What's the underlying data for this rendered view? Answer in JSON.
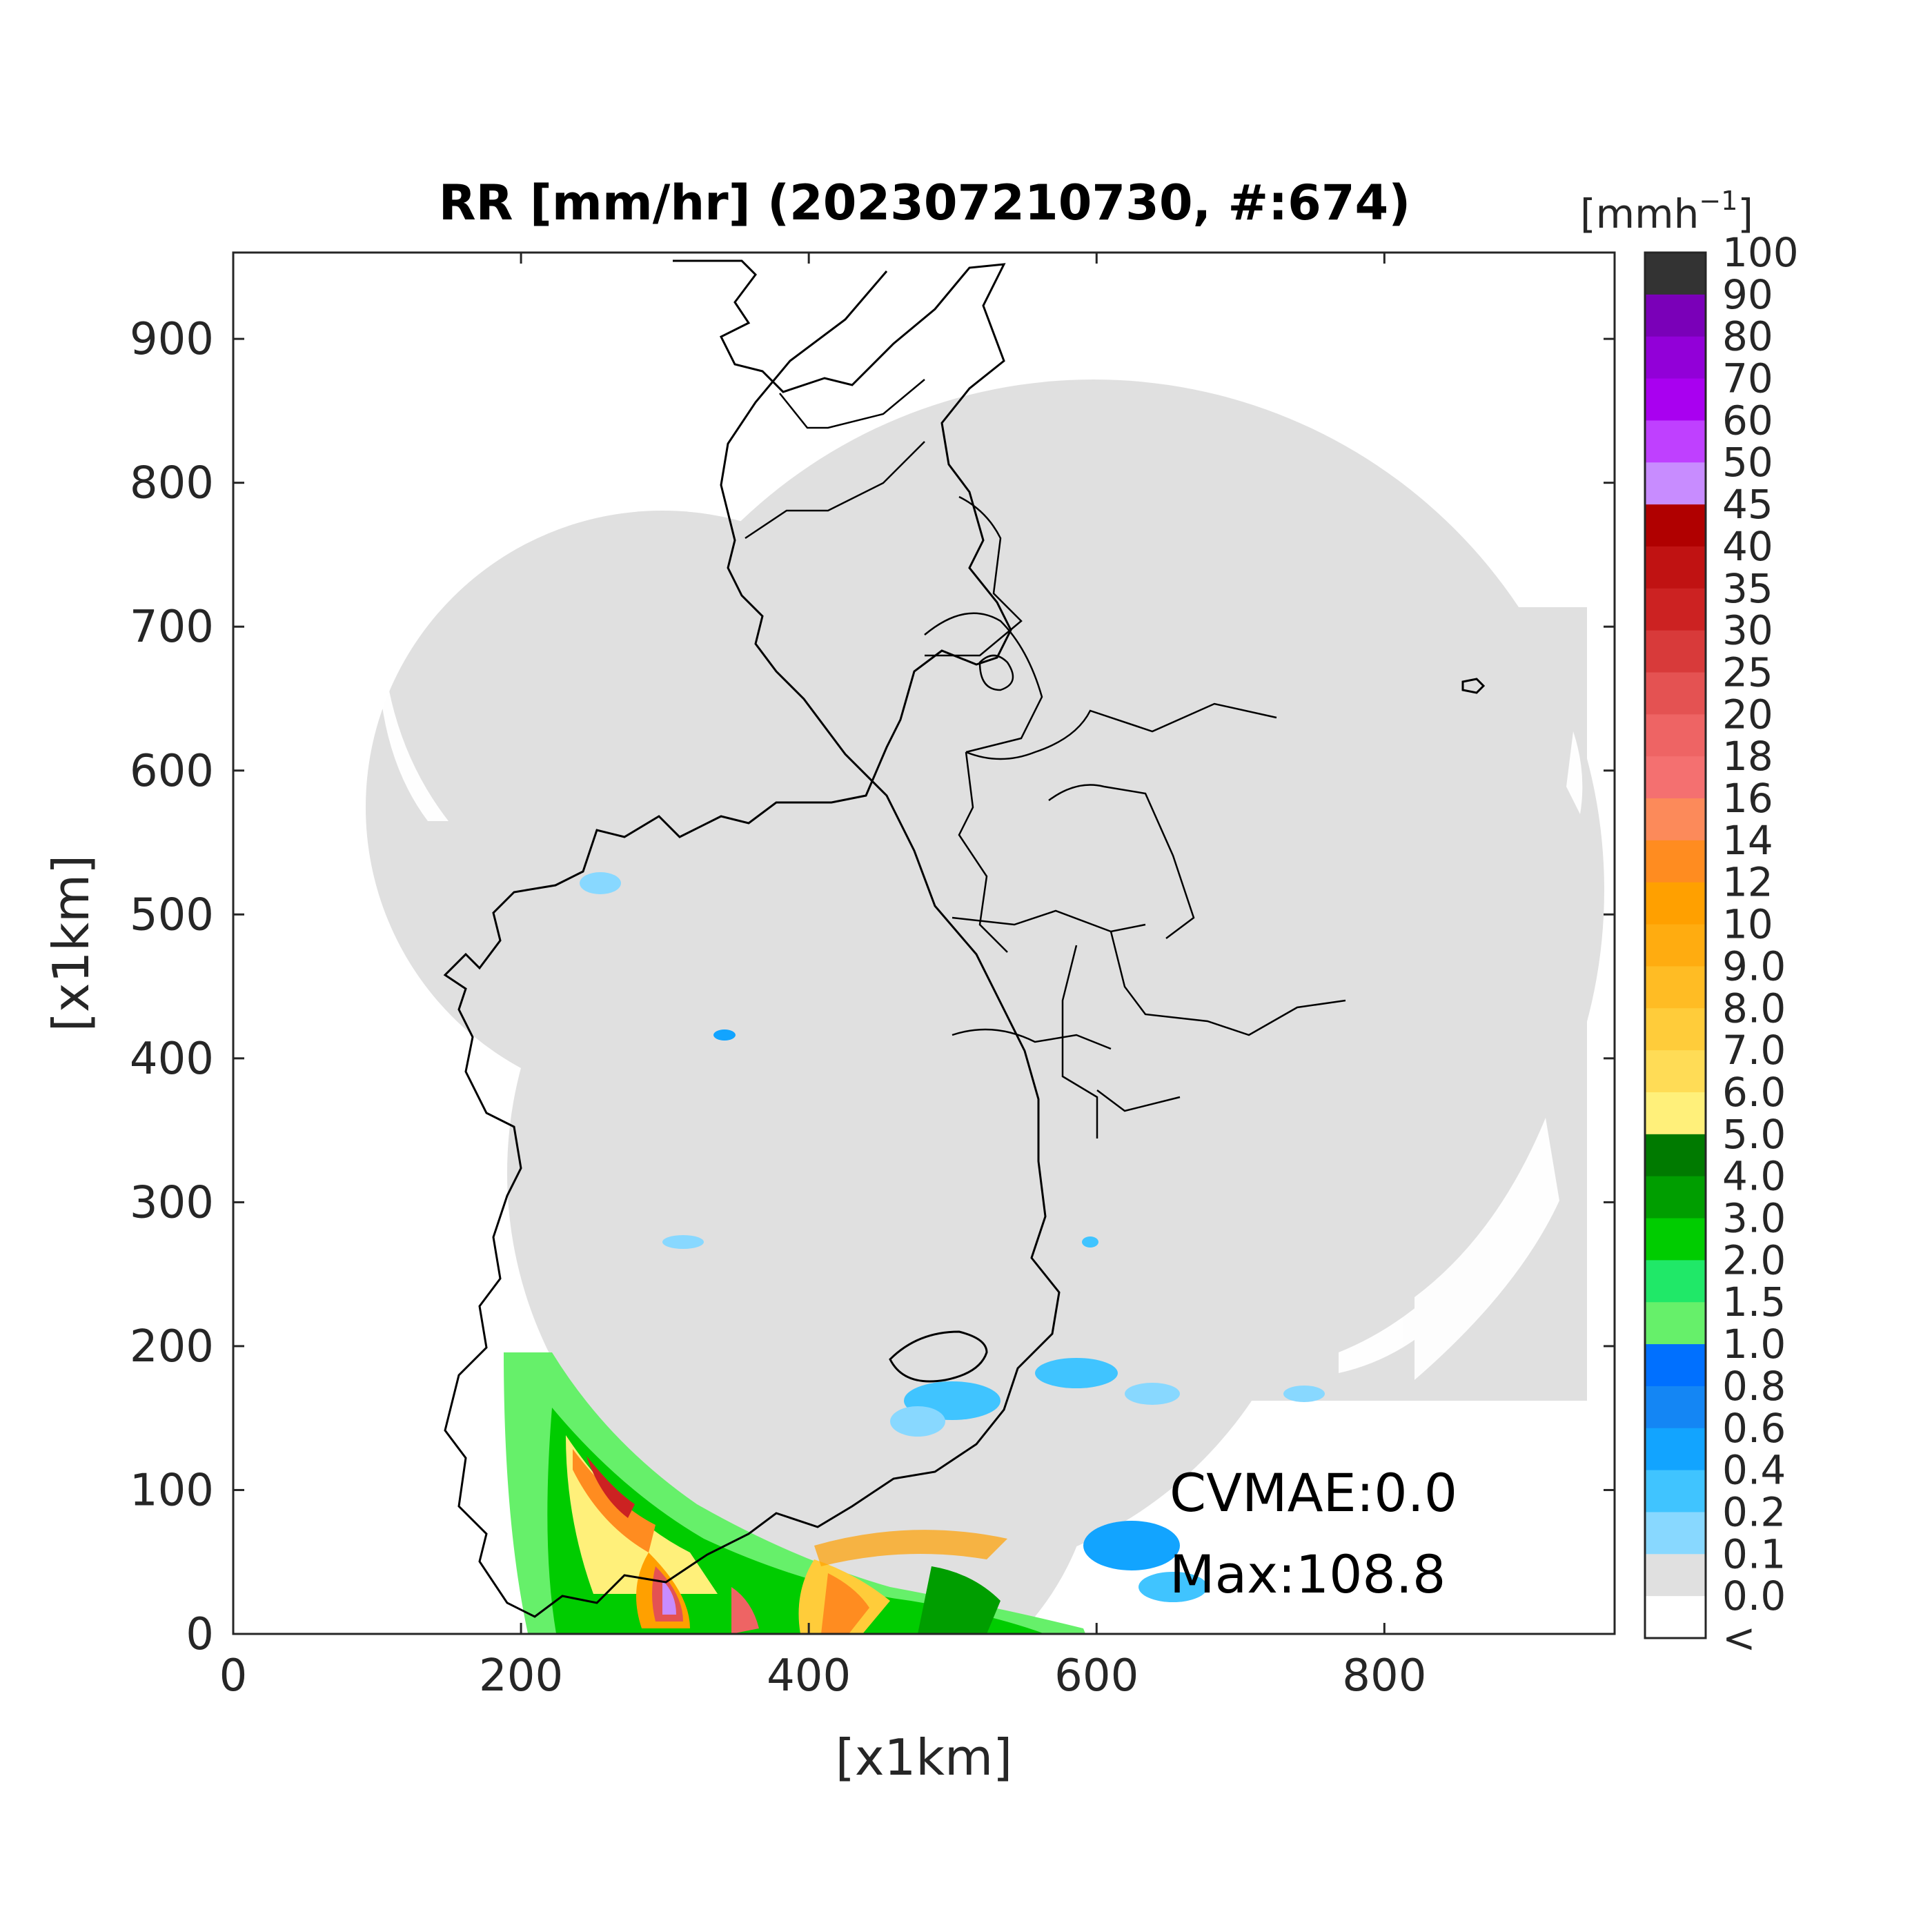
{
  "title": "RR [mm/hr] (202307210730, #:674)",
  "xlabel": "[x1km]",
  "ylabel": "[x1km]",
  "x_ticks": [
    "0",
    "200",
    "400",
    "600",
    "800"
  ],
  "y_ticks": [
    "0",
    "100",
    "200",
    "300",
    "400",
    "500",
    "600",
    "700",
    "800",
    "900"
  ],
  "x_tick_values": [
    0,
    200,
    400,
    600,
    800
  ],
  "y_tick_values": [
    0,
    100,
    200,
    300,
    400,
    500,
    600,
    700,
    800,
    900
  ],
  "xlim": [
    0,
    960
  ],
  "ylim": [
    0,
    960
  ],
  "colorbar": {
    "unit_label": "[mmh",
    "unit_exp": "−1",
    "unit_close": "]",
    "levels": [
      "100",
      "90",
      "80",
      "70",
      "60",
      "50",
      "45",
      "40",
      "35",
      "30",
      "25",
      "20",
      "18",
      "16",
      "14",
      "12",
      "10",
      "9.0",
      "8.0",
      "7.0",
      "6.0",
      "5.0",
      "4.0",
      "3.0",
      "2.0",
      "1.5",
      "1.0",
      "0.8",
      "0.6",
      "0.4",
      "0.2",
      "0.1",
      "0.0",
      "<"
    ],
    "colors": [
      "#333333",
      "#7a00b8",
      "#9200d8",
      "#a900f0",
      "#bf40ff",
      "#c88cff",
      "#b00000",
      "#c01212",
      "#cc2222",
      "#d83a3a",
      "#e45252",
      "#ee6464",
      "#f47070",
      "#fc8a5a",
      "#ff8c20",
      "#ffa000",
      "#ffac10",
      "#ffbc24",
      "#ffcc3a",
      "#ffdc56",
      "#fff07a",
      "#007a00",
      "#009e00",
      "#00cc00",
      "#20e868",
      "#66f06a",
      "#0070ff",
      "#1486f4",
      "#12a4ff",
      "#40c4ff",
      "#88d8ff",
      "#e0e0e0",
      "#ffffff"
    ]
  },
  "annotations": {
    "cvmae": "CVMAE:0.0",
    "max": "Max:108.8"
  },
  "colors": {
    "coverage": "#e0e0e0",
    "boundary": "#000000",
    "background": "#ffffff"
  }
}
